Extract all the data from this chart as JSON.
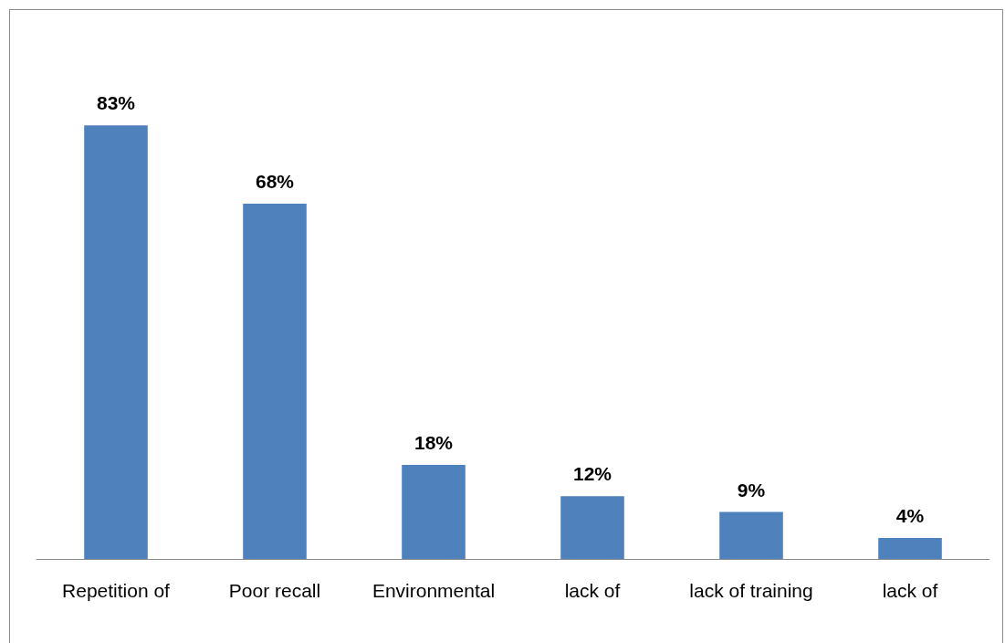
{
  "chart_data": {
    "type": "bar",
    "categories": [
      "Repetition of",
      "Poor recall",
      "Environmental",
      "lack of",
      "lack of training",
      "lack of"
    ],
    "values": [
      83,
      68,
      18,
      12,
      9,
      4
    ],
    "value_labels": [
      "83%",
      "68%",
      "18%",
      "12%",
      "9%",
      "4%"
    ],
    "color": "#4f81bd"
  }
}
